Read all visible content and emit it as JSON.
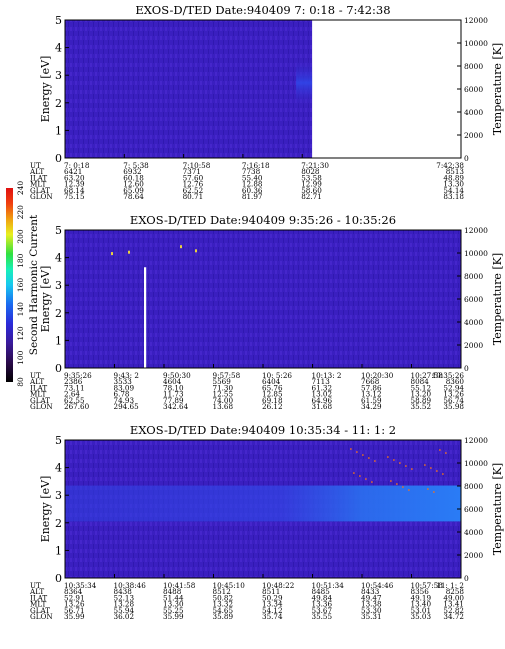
{
  "colors": {
    "background": "#3a1fc0",
    "blue_band": "#2e3ee6",
    "colorbar": [
      "#000000",
      "#2a0a4a",
      "#3a1a9a",
      "#2a2ad8",
      "#1a6af0",
      "#18c8f0",
      "#18f0b8",
      "#30e040",
      "#e8f020",
      "#f0a010",
      "#f04010",
      "#e01010"
    ]
  },
  "panels": [
    {
      "title": "EXOS-D/TED   Date:940409  7: 0:18 - 7:42:38",
      "ylabel": "Energy [eV]",
      "y2label": "Temperature [K]",
      "y_ticks": [
        "0",
        "1",
        "2",
        "3",
        "4",
        "5"
      ],
      "y2_ticks": [
        "0",
        "2000",
        "4000",
        "6000",
        "8000",
        "10000",
        "12000"
      ],
      "data_fraction": 0.624,
      "rows": [
        {
          "label": "UT",
          "values": [
            "7: 0:18",
            "7: 5:38",
            "7:10:58",
            "7:16:18",
            "7:21:30",
            "7:42:38"
          ]
        },
        {
          "label": "ALT",
          "values": [
            "6421",
            "6932",
            "7371",
            "7738",
            "8028",
            "8513"
          ]
        },
        {
          "label": "ILAT",
          "values": [
            "63.20",
            "60.18",
            "57.60",
            "55.40",
            "53.58",
            "48.89"
          ]
        },
        {
          "label": "MLT",
          "values": [
            "12.39",
            "12.60",
            "12.76",
            "12.88",
            "12.99",
            "13.30"
          ]
        },
        {
          "label": "GLAT",
          "values": [
            "68.14",
            "65.09",
            "62.52",
            "60.36",
            "58.60",
            "54.14"
          ]
        },
        {
          "label": "GLON",
          "values": [
            "75.15",
            "78.64",
            "80.71",
            "81.97",
            "82.71",
            "83.18"
          ]
        }
      ]
    },
    {
      "title": "EXOS-D/TED   Date:940409  9:35:26 - 10:35:26",
      "ylabel": "Energy [eV]",
      "y2label": "Temperature [K]",
      "y_ticks": [
        "0",
        "1",
        "2",
        "3",
        "4",
        "5"
      ],
      "y2_ticks": [
        "0",
        "2000",
        "4000",
        "6000",
        "8000",
        "10000",
        "12000"
      ],
      "rows": [
        {
          "label": "UT",
          "values": [
            "9:35:26",
            "9:43: 2",
            "9:50:30",
            "9:57:58",
            "10: 5:26",
            "10:13: 2",
            "10:20:30",
            "10:27:58",
            "10:35:26"
          ]
        },
        {
          "label": "ALT",
          "values": [
            "2386",
            "3533",
            "4604",
            "5569",
            "6404",
            "7113",
            "7668",
            "8084",
            "8360"
          ]
        },
        {
          "label": "ILAT",
          "values": [
            "73.11",
            "83.09",
            "78.10",
            "71.30",
            "65.76",
            "61.32",
            "57.86",
            "55.12",
            "52.94"
          ]
        },
        {
          "label": "MLT",
          "values": [
            "2.64",
            "6.78",
            "11.73",
            "12.55",
            "12.85",
            "13.02",
            "13.12",
            "13.20",
            "13.26"
          ]
        },
        {
          "label": "GLAT",
          "values": [
            "62.55",
            "74.93",
            "77.89",
            "74.00",
            "69.18",
            "64.96",
            "61.59",
            "58.89",
            "56.74"
          ]
        },
        {
          "label": "GLON",
          "values": [
            "267.60",
            "294.65",
            "342.64",
            "13.68",
            "26.12",
            "31.68",
            "34.29",
            "35.52",
            "35.98"
          ]
        }
      ]
    },
    {
      "title": "EXOS-D/TED   Date:940409  10:35:34 - 11: 1: 2",
      "ylabel": "Energy [eV]",
      "y2label": "Temperature [K]",
      "y_ticks": [
        "0",
        "1",
        "2",
        "3",
        "4",
        "5"
      ],
      "y2_ticks": [
        "0",
        "2000",
        "4000",
        "6000",
        "8000",
        "10000",
        "12000"
      ],
      "rows": [
        {
          "label": "UT",
          "values": [
            "10:35:34",
            "10:38:46",
            "10:41:58",
            "10:45:10",
            "10:48:22",
            "10:51:34",
            "10:54:46",
            "10:57:58",
            "11: 1: 2"
          ]
        },
        {
          "label": "ALT",
          "values": [
            "8364",
            "8438",
            "8488",
            "8512",
            "8511",
            "8485",
            "8433",
            "8356",
            "8258"
          ]
        },
        {
          "label": "ILAT",
          "values": [
            "52.91",
            "52.13",
            "51.44",
            "50.82",
            "50.29",
            "49.84",
            "49.47",
            "49.19",
            "49.00"
          ]
        },
        {
          "label": "MLT",
          "values": [
            "13.26",
            "13.28",
            "13.30",
            "13.32",
            "13.34",
            "13.36",
            "13.38",
            "13.40",
            "13.41"
          ]
        },
        {
          "label": "GLAT",
          "values": [
            "56.71",
            "55.94",
            "55.25",
            "54.65",
            "54.12",
            "53.67",
            "53.30",
            "53.01",
            "52.82"
          ]
        },
        {
          "label": "GLON",
          "values": [
            "35.99",
            "36.02",
            "35.99",
            "35.89",
            "35.74",
            "35.55",
            "35.31",
            "35.03",
            "34.72"
          ]
        }
      ]
    }
  ],
  "colorbar": {
    "label": "Second Harmonic Current",
    "ticks": [
      "80",
      "100",
      "120",
      "140",
      "160",
      "180",
      "200",
      "220",
      "240"
    ]
  },
  "chart_data": [
    {
      "type": "heatmap",
      "title": "EXOS-D/TED   Date:940409  7: 0:18 - 7:42:38",
      "ylabel": "Energy [eV]",
      "y2label": "Temperature [K]",
      "ylim": [
        0,
        5
      ],
      "y2lim": [
        0,
        12000
      ],
      "x": [
        "7: 0:18",
        "7: 5:38",
        "7:10:58",
        "7:16:18",
        "7:21:30",
        "7:42:38"
      ]
    },
    {
      "type": "heatmap",
      "title": "EXOS-D/TED   Date:940409  9:35:26 - 10:35:26",
      "ylabel": "Energy [eV]",
      "y2label": "Temperature [K]",
      "ylim": [
        0,
        5
      ],
      "y2lim": [
        0,
        12000
      ],
      "x": [
        "9:35:26",
        "9:43: 2",
        "9:50:30",
        "9:57:58",
        "10: 5:26",
        "10:13: 2",
        "10:20:30",
        "10:27:58",
        "10:35:26"
      ],
      "colorbar": {
        "label": "Second Harmonic Current",
        "range": [
          80,
          240
        ]
      }
    },
    {
      "type": "heatmap",
      "title": "EXOS-D/TED   Date:940409  10:35:34 - 11: 1: 2",
      "ylabel": "Energy [eV]",
      "y2label": "Temperature [K]",
      "ylim": [
        0,
        5
      ],
      "y2lim": [
        0,
        12000
      ],
      "x": [
        "10:35:34",
        "10:38:46",
        "10:41:58",
        "10:45:10",
        "10:48:22",
        "10:51:34",
        "10:54:46",
        "10:57:58",
        "11: 1: 2"
      ]
    }
  ]
}
